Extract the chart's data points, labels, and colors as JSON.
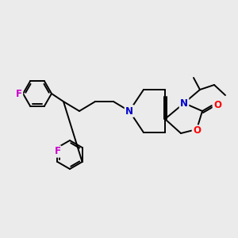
{
  "background_color": "#ebebeb",
  "figsize": [
    3.0,
    3.0
  ],
  "dpi": 100,
  "atom_colors": {
    "C": "#000000",
    "N": "#0000cc",
    "O": "#ff0000",
    "F": "#cc00cc",
    "default": "#000000"
  },
  "bond_color": "#000000",
  "bond_width": 1.4,
  "font_size_atom": 8.5
}
